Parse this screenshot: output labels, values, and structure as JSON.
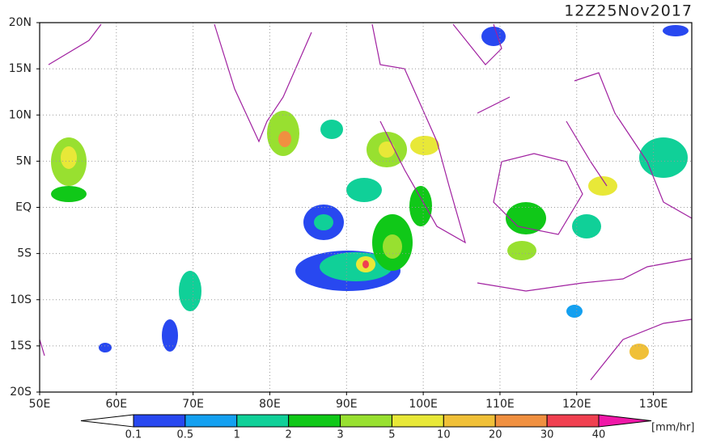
{
  "title": "12Z25Nov2017",
  "map": {
    "lon_lim": [
      50,
      135
    ],
    "lat_lim": [
      -20,
      20
    ],
    "lon_ticks": [
      {
        "value": 50,
        "label": "50E"
      },
      {
        "value": 60,
        "label": "60E"
      },
      {
        "value": 70,
        "label": "70E"
      },
      {
        "value": 80,
        "label": "80E"
      },
      {
        "value": 90,
        "label": "90E"
      },
      {
        "value": 100,
        "label": "100E"
      },
      {
        "value": 110,
        "label": "110E"
      },
      {
        "value": 120,
        "label": "120E"
      },
      {
        "value": 130,
        "label": "130E"
      }
    ],
    "lat_ticks": [
      {
        "value": 20,
        "label": "20N"
      },
      {
        "value": 15,
        "label": "15N"
      },
      {
        "value": 10,
        "label": "10N"
      },
      {
        "value": 5,
        "label": "5N"
      },
      {
        "value": 0,
        "label": "EQ"
      },
      {
        "value": -5,
        "label": "5S"
      },
      {
        "value": -10,
        "label": "10S"
      },
      {
        "value": -15,
        "label": "15S"
      },
      {
        "value": -20,
        "label": "20S"
      }
    ],
    "grid": true
  },
  "colorbar": {
    "levels": [
      0.1,
      0.5,
      1,
      2,
      3,
      5,
      10,
      20,
      30,
      40
    ],
    "colors": [
      "#2848f0",
      "#14a0f0",
      "#10d098",
      "#10c818",
      "#98e030",
      "#e8e838",
      "#f0c038",
      "#f09040",
      "#f04050"
    ],
    "below_color": "#ffffff",
    "above_color": "#f018a8",
    "unit": "[mm/hr]"
  }
}
